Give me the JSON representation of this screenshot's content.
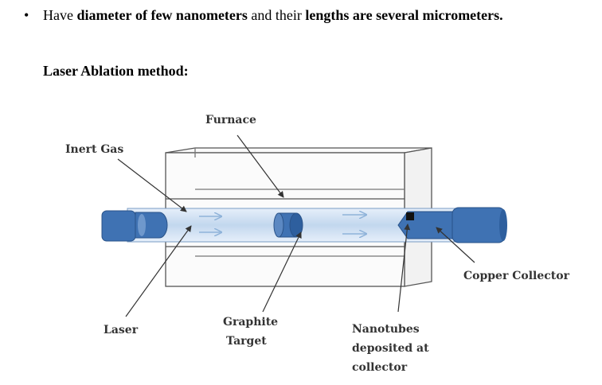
{
  "bullet": {
    "symbol": "•",
    "parts": [
      {
        "text": "Have ",
        "bold": false
      },
      {
        "text": "diameter",
        "bold": true
      },
      {
        "text": " ",
        "bold": false
      },
      {
        "text": "of few nanometers",
        "bold": true
      },
      {
        "text": " and their ",
        "bold": false
      },
      {
        "text": "lengths are several micrometers.",
        "bold": true
      }
    ]
  },
  "heading": "Laser Ablation method:",
  "diagram": {
    "labels": {
      "furnace": "Furnace",
      "inert_gas": "Inert Gas",
      "copper_collector": "Copper Collector",
      "laser": "Laser",
      "graphite_target_line1": "Graphite",
      "graphite_target_line2": "Target",
      "nanotubes_line1": "Nanotubes",
      "nanotubes_line2": "deposited at",
      "nanotubes_line3": "collector"
    },
    "colors": {
      "tube_blue": "#3f72b3",
      "tube_light": "#cfe0f1",
      "outline": "#555555"
    }
  }
}
